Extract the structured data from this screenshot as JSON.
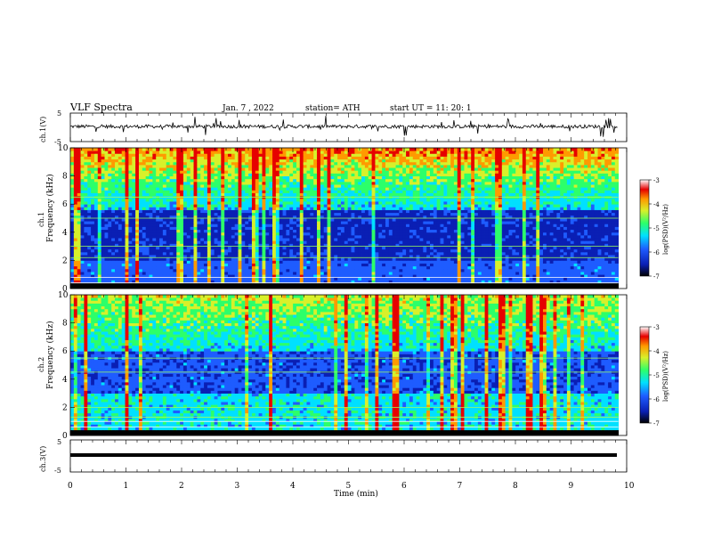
{
  "header": {
    "title": "VLF  Spectra",
    "date": "Jan.  7  , 2022",
    "station": "station= ATH",
    "start": "start  UT  =    11: 20: 1"
  },
  "chart_data": [
    {
      "type": "line",
      "ylabel": "ch.1(V)",
      "ylim": [
        -5,
        5
      ],
      "yticks": [
        "5",
        "-5"
      ],
      "xlim": [
        0,
        10
      ],
      "description_series": "noisy waveform near 0 V with spikes"
    },
    {
      "type": "heatmap",
      "ylabel_1": "ch.1",
      "ylabel_2": "Frequency  (kHz)",
      "ylim": [
        0,
        10
      ],
      "yticks": [
        "0",
        "2",
        "4",
        "6",
        "8",
        "10"
      ],
      "xlim": [
        0,
        10
      ],
      "colorbar": {
        "label": "log(PSD)(V²/Hz)",
        "ticks": [
          "-3",
          "-4",
          "-5",
          "-6",
          "-7"
        ],
        "range": [
          -7,
          -3
        ]
      }
    },
    {
      "type": "heatmap",
      "ylabel_1": "ch.2",
      "ylabel_2": "Frequency  (kHz)",
      "ylim": [
        0,
        10
      ],
      "yticks": [
        "0",
        "2",
        "4",
        "6",
        "8",
        "10"
      ],
      "xlim": [
        0,
        10
      ],
      "colorbar": {
        "label": "log(PSD)(V²/Hz)",
        "ticks": [
          "-3",
          "-4",
          "-5",
          "-6",
          "-7"
        ],
        "range": [
          -7,
          -3
        ]
      }
    },
    {
      "type": "line",
      "ylabel": "ch.3(V)",
      "ylim": [
        -5,
        5
      ],
      "yticks": [
        "5",
        "-5"
      ],
      "xlim": [
        0,
        10
      ],
      "xlabel": "Time  (min)",
      "xticks": [
        "0",
        "1",
        "2",
        "3",
        "4",
        "5",
        "6",
        "7",
        "8",
        "9",
        "10"
      ]
    }
  ],
  "colors": {
    "waveform": "#000000",
    "colormap": [
      "#000000",
      "#0a1fb4",
      "#1e5cff",
      "#00e0ff",
      "#2cff6a",
      "#d8f02a",
      "#ff9a00",
      "#e60000",
      "#ffffff"
    ]
  }
}
